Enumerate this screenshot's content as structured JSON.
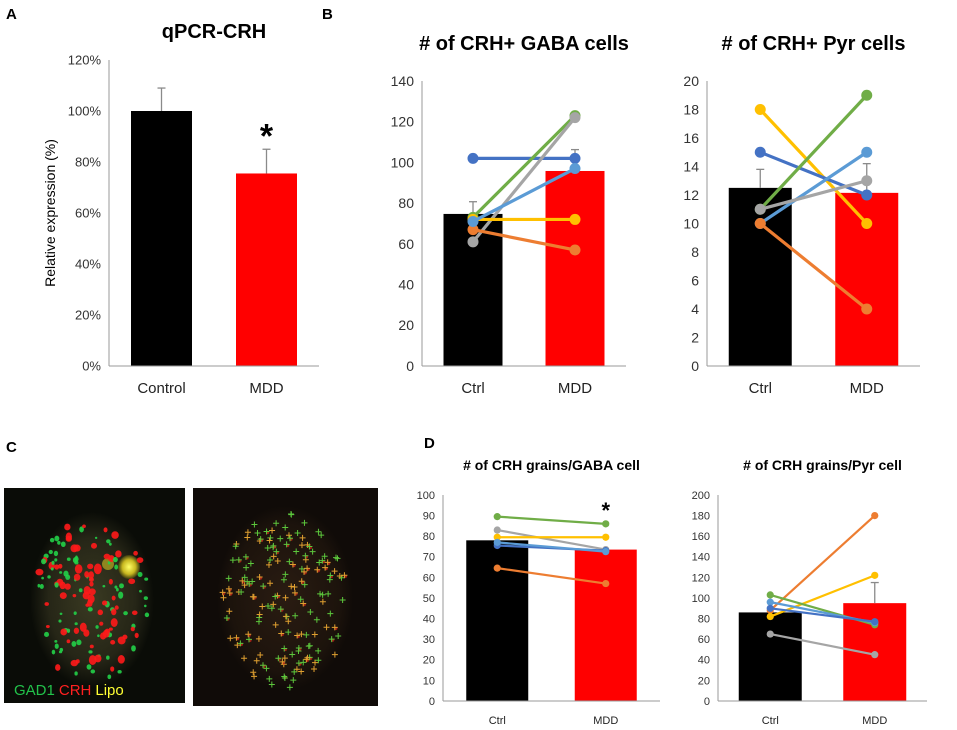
{
  "panel_labels": [
    "A",
    "B",
    "C",
    "D"
  ],
  "micro_legend": [
    {
      "text": "GAD1",
      "color": "#22c24a"
    },
    {
      "text": "CRH",
      "color": "#ff2020"
    },
    {
      "text": "Lipo",
      "color": "#ffff33"
    }
  ],
  "colors": {
    "black_bar": "#000000",
    "red_bar": "#ff0000",
    "subject_lines": [
      "#4472c4",
      "#70ad47",
      "#a5a5a5",
      "#ffc000",
      "#ed7d31",
      "#5b9bd5"
    ]
  },
  "chart_data": [
    {
      "id": "A",
      "type": "bar",
      "title": "qPCR-CRH",
      "ylabel": "Relative expression (%)",
      "xlabel": "",
      "categories": [
        "Control",
        "MDD"
      ],
      "values": [
        100,
        75.5
      ],
      "errors": [
        9,
        9.5
      ],
      "ylim": [
        0,
        120
      ],
      "yticks": [
        0,
        20,
        40,
        60,
        80,
        100,
        120
      ],
      "tick_suffix": "%",
      "annotations": [
        {
          "text": "*",
          "category": "MDD"
        }
      ]
    },
    {
      "id": "B1",
      "type": "bar",
      "title": "# of CRH+ GABA cells",
      "ylabel": "",
      "categories": [
        "Ctrl",
        "MDD"
      ],
      "values": [
        74.7,
        95.8
      ],
      "errors": [
        6,
        10.5
      ],
      "ylim": [
        0,
        140
      ],
      "yticks": [
        0,
        20,
        40,
        60,
        80,
        100,
        120,
        140
      ],
      "tick_suffix": "",
      "lines": [
        {
          "color": "#4472c4",
          "values": [
            102,
            102
          ]
        },
        {
          "color": "#70ad47",
          "values": [
            73,
            123
          ]
        },
        {
          "color": "#a5a5a5",
          "values": [
            61,
            122
          ]
        },
        {
          "color": "#ffc000",
          "values": [
            72,
            72
          ]
        },
        {
          "color": "#ed7d31",
          "values": [
            67,
            57
          ]
        },
        {
          "color": "#5b9bd5",
          "values": [
            71,
            97
          ]
        }
      ]
    },
    {
      "id": "B2",
      "type": "bar",
      "title": "# of CRH+ Pyr cells",
      "ylabel": "",
      "categories": [
        "Ctrl",
        "MDD"
      ],
      "values": [
        12.5,
        12.15
      ],
      "errors": [
        1.3,
        2.05
      ],
      "ylim": [
        0,
        20
      ],
      "yticks": [
        0,
        2,
        4,
        6,
        8,
        10,
        12,
        14,
        16,
        18,
        20
      ],
      "tick_suffix": "",
      "lines": [
        {
          "color": "#ffc000",
          "values": [
            18,
            10
          ]
        },
        {
          "color": "#4472c4",
          "values": [
            15,
            12
          ]
        },
        {
          "color": "#70ad47",
          "values": [
            11,
            19
          ]
        },
        {
          "color": "#5b9bd5",
          "values": [
            10,
            15
          ]
        },
        {
          "color": "#a5a5a5",
          "values": [
            11,
            13
          ]
        },
        {
          "color": "#ed7d31",
          "values": [
            10,
            4
          ]
        }
      ]
    },
    {
      "id": "D1",
      "type": "bar",
      "title": "# of CRH grains/GABA cell",
      "ylabel": "",
      "categories": [
        "Ctrl",
        "MDD"
      ],
      "values": [
        78,
        73.5
      ],
      "errors": [
        0,
        0
      ],
      "ylim": [
        0,
        100
      ],
      "yticks": [
        0,
        10,
        20,
        30,
        40,
        50,
        60,
        70,
        80,
        90,
        100
      ],
      "tick_suffix": "",
      "annotations": [
        {
          "text": "*",
          "category": "MDD"
        }
      ],
      "lines": [
        {
          "color": "#70ad47",
          "values": [
            89.5,
            86
          ]
        },
        {
          "color": "#a5a5a5",
          "values": [
            83,
            73.5
          ]
        },
        {
          "color": "#ffc000",
          "values": [
            79.5,
            79.5
          ]
        },
        {
          "color": "#4472c4",
          "values": [
            75.5,
            73
          ]
        },
        {
          "color": "#5b9bd5",
          "values": [
            77,
            72.5
          ]
        },
        {
          "color": "#ed7d31",
          "values": [
            64.5,
            57
          ]
        }
      ]
    },
    {
      "id": "D2",
      "type": "bar",
      "title": "# of CRH grains/Pyr cell",
      "ylabel": "",
      "categories": [
        "Ctrl",
        "MDD"
      ],
      "values": [
        86,
        95
      ],
      "errors": [
        0,
        20
      ],
      "ylim": [
        0,
        200
      ],
      "yticks": [
        0,
        20,
        40,
        60,
        80,
        100,
        120,
        140,
        160,
        180,
        200
      ],
      "tick_suffix": "",
      "lines": [
        {
          "color": "#ed7d31",
          "values": [
            88,
            180
          ]
        },
        {
          "color": "#ffc000",
          "values": [
            82,
            122
          ]
        },
        {
          "color": "#70ad47",
          "values": [
            103,
            74
          ]
        },
        {
          "color": "#5b9bd5",
          "values": [
            96,
            76
          ]
        },
        {
          "color": "#4472c4",
          "values": [
            90,
            77
          ]
        },
        {
          "color": "#a5a5a5",
          "values": [
            65,
            45
          ]
        }
      ]
    }
  ]
}
